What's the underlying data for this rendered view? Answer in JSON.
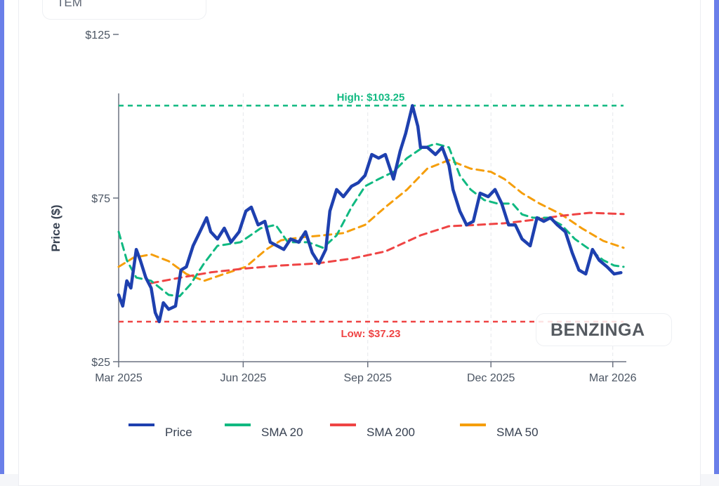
{
  "ticker": "TEM",
  "watermark": "BENZINGA",
  "chart_data": {
    "type": "line",
    "ylabel": "Price ($)",
    "xlabel": "",
    "ylim": [
      25,
      125
    ],
    "xlim": [
      "2025-03-01",
      "2026-03-11"
    ],
    "y_ticks": [
      {
        "value": 25,
        "label": "$25"
      },
      {
        "value": 75,
        "label": "$75"
      },
      {
        "value": 125,
        "label": "$125"
      }
    ],
    "x_ticks": [
      {
        "date": "2025-03-01",
        "label": "Mar 2025"
      },
      {
        "date": "2025-06-01",
        "label": "Jun 2025"
      },
      {
        "date": "2025-09-01",
        "label": "Sep 2025"
      },
      {
        "date": "2025-12-01",
        "label": "Dec 2025"
      },
      {
        "date": "2026-03-01",
        "label": "Mar 2026"
      }
    ],
    "grid": "vertical dashed",
    "legend_position": "bottom",
    "annotations": [
      {
        "label": "High: $103.25",
        "value": 103.25,
        "color": "#10b981"
      },
      {
        "label": "Low: $37.23",
        "value": 37.23,
        "color": "#ef4444"
      }
    ],
    "series": [
      {
        "name": "Price",
        "color": "#1e40af",
        "style": "solid",
        "points": [
          [
            "2025-03-01",
            45.4
          ],
          [
            "2025-03-04",
            42
          ],
          [
            "2025-03-07",
            49.7
          ],
          [
            "2025-03-10",
            47.5
          ],
          [
            "2025-03-14",
            59.3
          ],
          [
            "2025-03-17",
            56
          ],
          [
            "2025-03-21",
            50.7
          ],
          [
            "2025-03-25",
            47.5
          ],
          [
            "2025-03-28",
            40
          ],
          [
            "2025-03-31",
            37.23
          ],
          [
            "2025-04-03",
            43
          ],
          [
            "2025-04-07",
            41
          ],
          [
            "2025-04-12",
            42
          ],
          [
            "2025-04-16",
            53
          ],
          [
            "2025-04-20",
            54
          ],
          [
            "2025-04-25",
            60.4
          ],
          [
            "2025-04-30",
            64.7
          ],
          [
            "2025-05-05",
            69
          ],
          [
            "2025-05-08",
            64.7
          ],
          [
            "2025-05-13",
            62.5
          ],
          [
            "2025-05-18",
            65.8
          ],
          [
            "2025-05-23",
            61.5
          ],
          [
            "2025-05-29",
            64.7
          ],
          [
            "2025-06-03",
            71
          ],
          [
            "2025-06-07",
            72.2
          ],
          [
            "2025-06-12",
            66.8
          ],
          [
            "2025-06-17",
            67.9
          ],
          [
            "2025-06-21",
            61.5
          ],
          [
            "2025-06-26",
            60.4
          ],
          [
            "2025-07-01",
            59.3
          ],
          [
            "2025-07-06",
            62.5
          ],
          [
            "2025-07-12",
            61.5
          ],
          [
            "2025-07-17",
            64.7
          ],
          [
            "2025-07-22",
            58.3
          ],
          [
            "2025-07-27",
            55
          ],
          [
            "2025-08-01",
            59.3
          ],
          [
            "2025-08-04",
            71
          ],
          [
            "2025-08-09",
            77.6
          ],
          [
            "2025-08-14",
            75.4
          ],
          [
            "2025-08-20",
            78.6
          ],
          [
            "2025-08-25",
            79.7
          ],
          [
            "2025-08-30",
            81.9
          ],
          [
            "2025-09-04",
            88.3
          ],
          [
            "2025-09-09",
            87.2
          ],
          [
            "2025-09-14",
            88.3
          ],
          [
            "2025-09-20",
            80.8
          ],
          [
            "2025-09-25",
            89.4
          ],
          [
            "2025-09-29",
            94.7
          ],
          [
            "2025-10-04",
            103.25
          ],
          [
            "2025-10-08",
            96.9
          ],
          [
            "2025-10-10",
            90.5
          ],
          [
            "2025-10-15",
            90.5
          ],
          [
            "2025-10-21",
            88.3
          ],
          [
            "2025-10-26",
            90.5
          ],
          [
            "2025-10-31",
            85
          ],
          [
            "2025-11-03",
            77.6
          ],
          [
            "2025-11-08",
            71
          ],
          [
            "2025-11-13",
            66.8
          ],
          [
            "2025-11-18",
            67.9
          ],
          [
            "2025-11-23",
            76.5
          ],
          [
            "2025-11-29",
            75.4
          ],
          [
            "2025-12-04",
            77.6
          ],
          [
            "2025-12-09",
            73.3
          ],
          [
            "2025-12-14",
            66.8
          ],
          [
            "2025-12-19",
            66.8
          ],
          [
            "2025-12-24",
            62.5
          ],
          [
            "2025-12-30",
            60.4
          ],
          [
            "2026-01-04",
            69
          ],
          [
            "2026-01-09",
            67.9
          ],
          [
            "2026-01-14",
            69
          ],
          [
            "2026-01-19",
            66.8
          ],
          [
            "2026-01-25",
            64.7
          ],
          [
            "2026-01-30",
            58.3
          ],
          [
            "2026-02-04",
            53
          ],
          [
            "2026-02-09",
            51.8
          ],
          [
            "2026-02-14",
            59.3
          ],
          [
            "2026-02-19",
            56
          ],
          [
            "2026-02-25",
            53.9
          ],
          [
            "2026-03-02",
            51.8
          ],
          [
            "2026-03-07",
            52.2
          ]
        ]
      },
      {
        "name": "SMA 20",
        "color": "#10b981",
        "style": "dashed",
        "points": [
          [
            "2025-03-01",
            64.7
          ],
          [
            "2025-03-07",
            56
          ],
          [
            "2025-03-14",
            50.7
          ],
          [
            "2025-03-25",
            49.7
          ],
          [
            "2025-04-07",
            45.4
          ],
          [
            "2025-04-15",
            45
          ],
          [
            "2025-04-23",
            48.6
          ],
          [
            "2025-05-03",
            55
          ],
          [
            "2025-05-13",
            60.4
          ],
          [
            "2025-05-30",
            61.5
          ],
          [
            "2025-06-14",
            65.8
          ],
          [
            "2025-06-25",
            66.8
          ],
          [
            "2025-07-04",
            61.5
          ],
          [
            "2025-07-19",
            61.5
          ],
          [
            "2025-07-30",
            59.8
          ],
          [
            "2025-08-09",
            63.6
          ],
          [
            "2025-08-20",
            72.2
          ],
          [
            "2025-08-30",
            78.6
          ],
          [
            "2025-09-09",
            80.8
          ],
          [
            "2025-09-20",
            83
          ],
          [
            "2025-09-30",
            87.2
          ],
          [
            "2025-10-10",
            90
          ],
          [
            "2025-10-21",
            91.6
          ],
          [
            "2025-10-31",
            90.5
          ],
          [
            "2025-11-08",
            81.9
          ],
          [
            "2025-11-16",
            77.6
          ],
          [
            "2025-11-26",
            74.4
          ],
          [
            "2025-12-06",
            73.3
          ],
          [
            "2025-12-17",
            73.3
          ],
          [
            "2025-12-24",
            70
          ],
          [
            "2026-01-01",
            69
          ],
          [
            "2026-01-12",
            69
          ],
          [
            "2026-01-22",
            66.8
          ],
          [
            "2026-02-01",
            62.5
          ],
          [
            "2026-02-12",
            59.3
          ],
          [
            "2026-02-22",
            56
          ],
          [
            "2026-03-02",
            54.4
          ],
          [
            "2026-03-09",
            54
          ]
        ]
      },
      {
        "name": "SMA 200",
        "color": "#ef4444",
        "style": "dashed",
        "points": [
          [
            "2025-03-25",
            49
          ],
          [
            "2025-04-17",
            50.8
          ],
          [
            "2025-05-08",
            52.3
          ],
          [
            "2025-06-03",
            53.5
          ],
          [
            "2025-06-29",
            54.4
          ],
          [
            "2025-07-25",
            55
          ],
          [
            "2025-08-20",
            56.5
          ],
          [
            "2025-09-14",
            58.7
          ],
          [
            "2025-10-10",
            63.6
          ],
          [
            "2025-10-31",
            66.4
          ],
          [
            "2025-11-21",
            66.8
          ],
          [
            "2025-12-11",
            67.3
          ],
          [
            "2026-01-01",
            68.3
          ],
          [
            "2026-01-22",
            69.6
          ],
          [
            "2026-02-12",
            70.5
          ],
          [
            "2026-03-09",
            70.1
          ]
        ]
      },
      {
        "name": "SMA 50",
        "color": "#f59e0b",
        "style": "dashed",
        "points": [
          [
            "2025-03-01",
            54
          ],
          [
            "2025-03-12",
            56.8
          ],
          [
            "2025-03-25",
            57.8
          ],
          [
            "2025-04-07",
            55.7
          ],
          [
            "2025-04-20",
            51.8
          ],
          [
            "2025-05-03",
            49.7
          ],
          [
            "2025-05-18",
            51.8
          ],
          [
            "2025-06-03",
            54
          ],
          [
            "2025-06-18",
            59.3
          ],
          [
            "2025-06-29",
            62.1
          ],
          [
            "2025-07-14",
            63
          ],
          [
            "2025-07-30",
            63.6
          ],
          [
            "2025-08-14",
            64.3
          ],
          [
            "2025-08-30",
            66.8
          ],
          [
            "2025-09-14",
            72.2
          ],
          [
            "2025-09-30",
            77.6
          ],
          [
            "2025-10-15",
            84
          ],
          [
            "2025-10-31",
            86.6
          ],
          [
            "2025-11-16",
            84
          ],
          [
            "2025-12-01",
            83
          ],
          [
            "2025-12-11",
            80.8
          ],
          [
            "2025-12-24",
            76.5
          ],
          [
            "2026-01-06",
            73.3
          ],
          [
            "2026-01-22",
            70
          ],
          [
            "2026-02-06",
            65.8
          ],
          [
            "2026-02-22",
            61.9
          ],
          [
            "2026-03-09",
            59.8
          ]
        ]
      }
    ]
  }
}
